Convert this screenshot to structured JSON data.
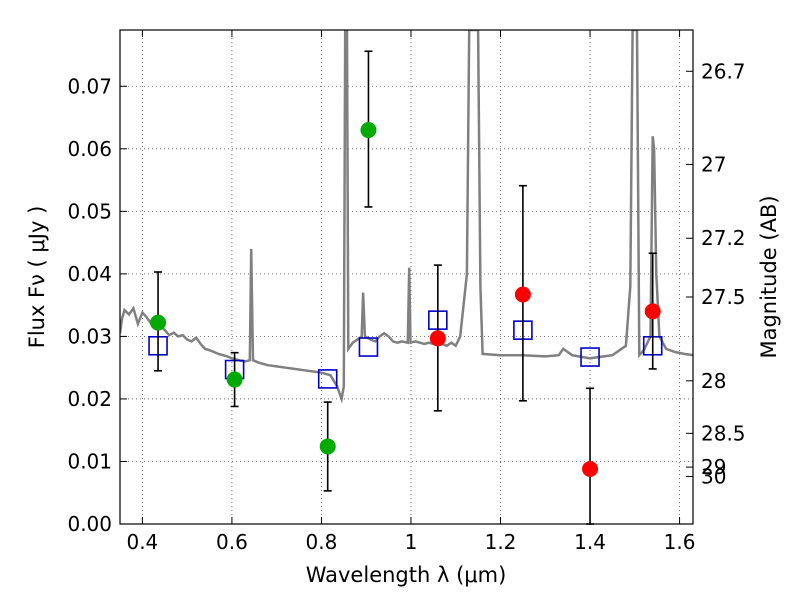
{
  "chart_data": {
    "type": "scatter",
    "xlabel": "Wavelength  λ (μm)",
    "ylabel": "Flux  Fν  ( μJy )",
    "y2label": "Magnitude (AB)",
    "xlim": [
      0.35,
      1.63
    ],
    "ylim": [
      0.0,
      0.079
    ],
    "grid": true,
    "x_ticks": [
      0.4,
      0.6,
      0.8,
      1.0,
      1.2,
      1.4,
      1.6
    ],
    "x_tick_labels": [
      "0.4",
      "0.6",
      "0.8",
      "1",
      "1.2",
      "1.4",
      "1.6"
    ],
    "y_ticks": [
      0.0,
      0.01,
      0.02,
      0.03,
      0.04,
      0.05,
      0.06,
      0.07
    ],
    "y_tick_labels": [
      "0.00",
      "0.01",
      "0.02",
      "0.03",
      "0.04",
      "0.05",
      "0.06",
      "0.07"
    ],
    "mag_ticks": [
      {
        "flux": 0.0076,
        "label": "30"
      },
      {
        "flux": 0.0091,
        "label": "29"
      },
      {
        "flux": 0.0145,
        "label": "28.5"
      },
      {
        "flux": 0.0229,
        "label": "28"
      },
      {
        "flux": 0.0363,
        "label": "27.5"
      },
      {
        "flux": 0.0457,
        "label": "27.2"
      },
      {
        "flux": 0.0575,
        "label": "27"
      },
      {
        "flux": 0.0724,
        "label": "26.7"
      }
    ],
    "series": [
      {
        "name": "observed (green)",
        "color": "#00aa00",
        "marker": "circle",
        "points": [
          {
            "x": 0.435,
            "y": 0.0322,
            "err_lo": 0.0245,
            "err_hi": 0.0403
          },
          {
            "x": 0.606,
            "y": 0.0231,
            "err_lo": 0.0188,
            "err_hi": 0.0274
          },
          {
            "x": 0.814,
            "y": 0.0124,
            "err_lo": 0.0053,
            "err_hi": 0.0195
          },
          {
            "x": 0.905,
            "y": 0.063,
            "err_lo": 0.0507,
            "err_hi": 0.0756
          }
        ]
      },
      {
        "name": "observed (red)",
        "color": "#ff0000",
        "marker": "circle",
        "points": [
          {
            "x": 1.06,
            "y": 0.0297,
            "err_lo": 0.0181,
            "err_hi": 0.0414
          },
          {
            "x": 1.25,
            "y": 0.0367,
            "err_lo": 0.0197,
            "err_hi": 0.0541
          },
          {
            "x": 1.4,
            "y": 0.0088,
            "err_lo": 0.0,
            "err_hi": 0.0217
          },
          {
            "x": 1.54,
            "y": 0.034,
            "err_lo": 0.0248,
            "err_hi": 0.0433
          }
        ]
      },
      {
        "name": "model (blue squares)",
        "color": "#0000cc",
        "marker": "square",
        "points": [
          {
            "x": 0.435,
            "y": 0.0285
          },
          {
            "x": 0.606,
            "y": 0.0247
          },
          {
            "x": 0.814,
            "y": 0.0232
          },
          {
            "x": 0.905,
            "y": 0.0283
          },
          {
            "x": 1.06,
            "y": 0.0326
          },
          {
            "x": 1.25,
            "y": 0.031
          },
          {
            "x": 1.4,
            "y": 0.0267
          },
          {
            "x": 1.54,
            "y": 0.0285
          }
        ]
      }
    ],
    "spectrum": {
      "name": "model spectrum",
      "color": "#808080",
      "points": [
        [
          0.35,
          0.0305
        ],
        [
          0.355,
          0.033
        ],
        [
          0.36,
          0.0342
        ],
        [
          0.37,
          0.0335
        ],
        [
          0.38,
          0.0345
        ],
        [
          0.39,
          0.032
        ],
        [
          0.4,
          0.0338
        ],
        [
          0.41,
          0.033
        ],
        [
          0.42,
          0.032
        ],
        [
          0.43,
          0.0315
        ],
        [
          0.44,
          0.0318
        ],
        [
          0.45,
          0.031
        ],
        [
          0.46,
          0.0302
        ],
        [
          0.47,
          0.0306
        ],
        [
          0.48,
          0.03
        ],
        [
          0.49,
          0.0302
        ],
        [
          0.5,
          0.0295
        ],
        [
          0.51,
          0.0292
        ],
        [
          0.52,
          0.0298
        ],
        [
          0.53,
          0.0288
        ],
        [
          0.54,
          0.028
        ],
        [
          0.55,
          0.0278
        ],
        [
          0.56,
          0.0275
        ],
        [
          0.57,
          0.0272
        ],
        [
          0.58,
          0.027
        ],
        [
          0.59,
          0.0268
        ],
        [
          0.6,
          0.0265
        ],
        [
          0.61,
          0.0263
        ],
        [
          0.62,
          0.0261
        ],
        [
          0.63,
          0.026
        ],
        [
          0.64,
          0.0262
        ],
        [
          0.643,
          0.044
        ],
        [
          0.647,
          0.0262
        ],
        [
          0.66,
          0.0258
        ],
        [
          0.68,
          0.0254
        ],
        [
          0.7,
          0.0252
        ],
        [
          0.72,
          0.025
        ],
        [
          0.74,
          0.0248
        ],
        [
          0.76,
          0.0246
        ],
        [
          0.78,
          0.0244
        ],
        [
          0.8,
          0.0242
        ],
        [
          0.82,
          0.0238
        ],
        [
          0.835,
          0.022
        ],
        [
          0.845,
          0.02
        ],
        [
          0.85,
          0.022
        ],
        [
          0.853,
          0.079
        ],
        [
          0.857,
          0.079
        ],
        [
          0.86,
          0.028
        ],
        [
          0.87,
          0.029
        ],
        [
          0.88,
          0.0295
        ],
        [
          0.89,
          0.03
        ],
        [
          0.893,
          0.037
        ],
        [
          0.897,
          0.03
        ],
        [
          0.91,
          0.0295
        ],
        [
          0.92,
          0.0292
        ],
        [
          0.93,
          0.03
        ],
        [
          0.94,
          0.0305
        ],
        [
          0.95,
          0.03
        ],
        [
          0.96,
          0.0292
        ],
        [
          0.97,
          0.029
        ],
        [
          0.98,
          0.0292
        ],
        [
          0.993,
          0.029
        ],
        [
          0.996,
          0.041
        ],
        [
          0.999,
          0.029
        ],
        [
          1.01,
          0.0292
        ],
        [
          1.02,
          0.029
        ],
        [
          1.03,
          0.0288
        ],
        [
          1.04,
          0.029
        ],
        [
          1.05,
          0.0288
        ],
        [
          1.06,
          0.029
        ],
        [
          1.07,
          0.0288
        ],
        [
          1.08,
          0.0285
        ],
        [
          1.09,
          0.029
        ],
        [
          1.1,
          0.0285
        ],
        [
          1.11,
          0.03
        ],
        [
          1.125,
          0.04
        ],
        [
          1.13,
          0.079
        ],
        [
          1.15,
          0.079
        ],
        [
          1.155,
          0.038
        ],
        [
          1.16,
          0.0272
        ],
        [
          1.2,
          0.027
        ],
        [
          1.25,
          0.027
        ],
        [
          1.3,
          0.0268
        ],
        [
          1.33,
          0.027
        ],
        [
          1.34,
          0.028
        ],
        [
          1.36,
          0.027
        ],
        [
          1.4,
          0.0265
        ],
        [
          1.45,
          0.027
        ],
        [
          1.48,
          0.0285
        ],
        [
          1.49,
          0.038
        ],
        [
          1.495,
          0.079
        ],
        [
          1.505,
          0.079
        ],
        [
          1.51,
          0.027
        ],
        [
          1.52,
          0.0278
        ],
        [
          1.535,
          0.03
        ],
        [
          1.54,
          0.062
        ],
        [
          1.543,
          0.06
        ],
        [
          1.548,
          0.04
        ],
        [
          1.555,
          0.03
        ],
        [
          1.57,
          0.028
        ],
        [
          1.59,
          0.0275
        ],
        [
          1.61,
          0.0272
        ],
        [
          1.63,
          0.027
        ]
      ]
    }
  }
}
